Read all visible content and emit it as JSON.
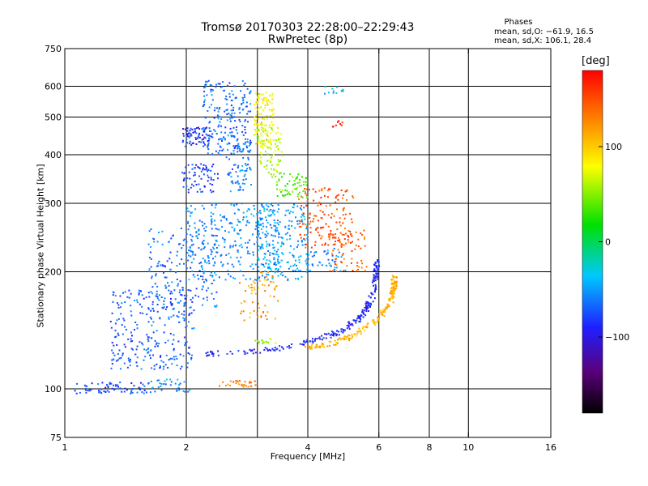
{
  "title": "Tromsø 20170303 22:28:00–22:29:43",
  "subtitle": "RwPretec (8p)",
  "phase_stats": {
    "heading": "Phases",
    "line_o": "mean, sd,O: −61.9, 16.5",
    "line_x": "mean, sd,X: 106.1, 28.4"
  },
  "chart_data": {
    "type": "scatter",
    "xlabel": "Frequency [MHz]",
    "ylabel": "Stationary phase Virtual Height [km]",
    "xscale": "log",
    "yscale": "log",
    "xlim": [
      1,
      16
    ],
    "ylim": [
      75,
      750
    ],
    "xticks": [
      1,
      2,
      4,
      6,
      8,
      10,
      16
    ],
    "xtick_labels": [
      "1",
      "2",
      "4",
      "6",
      "8",
      "10",
      "16"
    ],
    "xgrid": [
      2,
      3,
      4,
      6,
      8,
      10
    ],
    "yticks": [
      75,
      100,
      200,
      300,
      400,
      500,
      600,
      750
    ],
    "ytick_labels": [
      "75",
      "100",
      "200",
      "300",
      "400",
      "500",
      "600",
      "750"
    ],
    "ygrid": [
      100,
      200,
      300,
      400,
      500,
      600
    ],
    "grid": true,
    "colorbar": {
      "unit": "[deg]",
      "range": [
        -180,
        180
      ],
      "tick_values": [
        100,
        0,
        -100
      ],
      "tick_labels": [
        "100",
        "0",
        "−100"
      ]
    },
    "clusters": [
      {
        "f": 1.05,
        "f2": 1.6,
        "h": 97,
        "h2": 104,
        "phase": -75,
        "n": 70
      },
      {
        "f": 1.6,
        "f2": 2.1,
        "h": 98,
        "h2": 106,
        "phase": -55,
        "n": 35
      },
      {
        "f": 1.3,
        "f2": 2.1,
        "h": 112,
        "h2": 180,
        "phase": -70,
        "n": 260
      },
      {
        "f": 1.6,
        "f2": 2.4,
        "h": 160,
        "h2": 260,
        "phase": -65,
        "n": 170
      },
      {
        "f": 2.0,
        "f2": 3.4,
        "h": 190,
        "h2": 300,
        "phase": -55,
        "n": 300
      },
      {
        "f": 3.0,
        "f2": 4.0,
        "h": 190,
        "h2": 300,
        "phase": -45,
        "n": 200
      },
      {
        "f": 1.95,
        "f2": 2.3,
        "h": 420,
        "h2": 470,
        "phase": -85,
        "n": 70
      },
      {
        "f": 1.95,
        "f2": 2.4,
        "h": 320,
        "h2": 380,
        "phase": -80,
        "n": 70
      },
      {
        "f": 2.2,
        "f2": 2.9,
        "h": 400,
        "h2": 620,
        "phase": -65,
        "n": 200
      },
      {
        "f": 2.5,
        "f2": 2.9,
        "h": 320,
        "h2": 450,
        "phase": -60,
        "n": 80
      },
      {
        "f": 2.95,
        "f2": 3.3,
        "h": 420,
        "h2": 580,
        "phase": 85,
        "n": 120
      },
      {
        "f": 3.0,
        "f2": 3.45,
        "h": 350,
        "h2": 470,
        "phase": 60,
        "n": 80
      },
      {
        "f": 3.35,
        "f2": 4.0,
        "h": 310,
        "h2": 360,
        "phase": 40,
        "n": 60
      },
      {
        "f": 3.8,
        "f2": 5.2,
        "h": 230,
        "h2": 330,
        "phase": 150,
        "n": 150
      },
      {
        "f": 4.5,
        "f2": 5.6,
        "h": 200,
        "h2": 260,
        "phase": 140,
        "n": 60
      },
      {
        "f": 4.0,
        "f2": 5.0,
        "h": 200,
        "h2": 230,
        "phase": -60,
        "n": 40
      },
      {
        "f": 2.7,
        "f2": 3.4,
        "h": 150,
        "h2": 200,
        "phase": 120,
        "n": 60
      },
      {
        "f": 2.4,
        "f2": 3.0,
        "h": 101,
        "h2": 105,
        "phase": 130,
        "n": 30
      },
      {
        "f": 4.4,
        "f2": 4.9,
        "h": 570,
        "h2": 610,
        "phase": -40,
        "n": 12
      },
      {
        "f": 4.6,
        "f2": 4.9,
        "h": 470,
        "h2": 490,
        "phase": 170,
        "n": 8
      }
    ],
    "traces": [
      {
        "phase": -90,
        "n": 240,
        "points": [
          [
            2.2,
            123
          ],
          [
            2.8,
            124
          ],
          [
            3.5,
            128
          ],
          [
            4.2,
            134
          ],
          [
            4.8,
            140
          ],
          [
            5.3,
            150
          ],
          [
            5.6,
            160
          ],
          [
            5.8,
            175
          ],
          [
            5.9,
            195
          ],
          [
            5.95,
            215
          ]
        ]
      },
      {
        "phase": 110,
        "n": 200,
        "points": [
          [
            4.0,
            128
          ],
          [
            4.6,
            131
          ],
          [
            5.2,
            137
          ],
          [
            5.8,
            147
          ],
          [
            6.2,
            158
          ],
          [
            6.45,
            170
          ],
          [
            6.55,
            182
          ],
          [
            6.55,
            195
          ]
        ]
      },
      {
        "phase": 55,
        "n": 16,
        "points": [
          [
            3.0,
            132
          ],
          [
            3.3,
            133
          ]
        ]
      }
    ]
  }
}
